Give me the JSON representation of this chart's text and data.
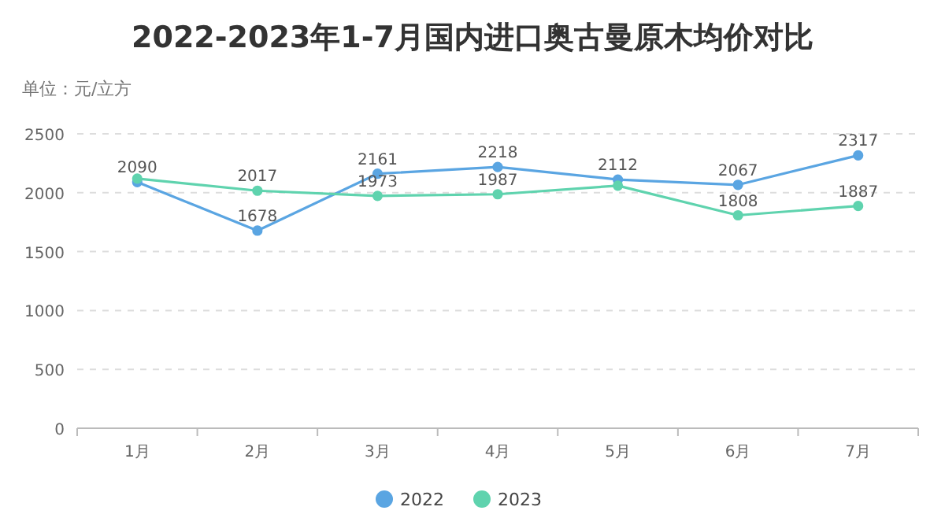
{
  "chart_data": {
    "type": "line",
    "title": "2022-2023年1-7月国内进口奥古曼原木均价对比",
    "ylabel": "单位：元/立方",
    "categories": [
      "1月",
      "2月",
      "3月",
      "4月",
      "5月",
      "6月",
      "7月"
    ],
    "series": [
      {
        "name": "2022",
        "color": "#5aa5e2",
        "values": [
          2090,
          1678,
          2161,
          2218,
          2112,
          2067,
          2317
        ],
        "value_labels": [
          "2090",
          "1678",
          "2161",
          "2218",
          "2112",
          "2067",
          "2317"
        ]
      },
      {
        "name": "2023",
        "color": "#5fd3ae",
        "values": [
          2120,
          2017,
          1973,
          1987,
          2060,
          1808,
          1887
        ],
        "value_labels": [
          null,
          "2017",
          "1973",
          "1987",
          null,
          "1808",
          "1887"
        ]
      }
    ],
    "ylim": [
      0,
      2500
    ],
    "yticks": [
      0,
      500,
      1000,
      1500,
      2000,
      2500
    ],
    "grid": "y",
    "legend": "bottom",
    "marker": "circle",
    "line_style": "solid"
  }
}
